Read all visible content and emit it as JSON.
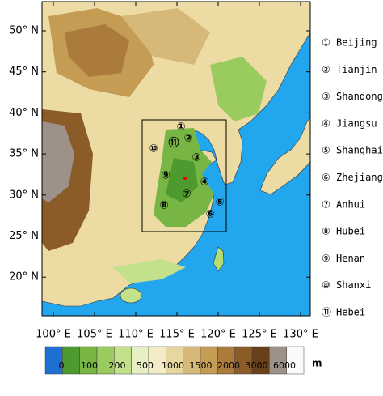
{
  "map": {
    "lat_ticks": [
      {
        "value": 50,
        "label": "50° N"
      },
      {
        "value": 45,
        "label": "45° N"
      },
      {
        "value": 40,
        "label": "40° N"
      },
      {
        "value": 35,
        "label": "35° N"
      },
      {
        "value": 30,
        "label": "30° N"
      },
      {
        "value": 25,
        "label": "25° N"
      },
      {
        "value": 20,
        "label": "20° N"
      }
    ],
    "lon_ticks": [
      {
        "value": 100,
        "label": "100° E"
      },
      {
        "value": 105,
        "label": "105° E"
      },
      {
        "value": 110,
        "label": "110° E"
      },
      {
        "value": 115,
        "label": "115° E"
      },
      {
        "value": 120,
        "label": "120° E"
      },
      {
        "value": 125,
        "label": "125° E"
      },
      {
        "value": 130,
        "label": "130° E"
      }
    ]
  },
  "legend": [
    {
      "symbol": "①",
      "name": "Beijing"
    },
    {
      "symbol": "②",
      "name": "Tianjin"
    },
    {
      "symbol": "③",
      "name": "Shandong"
    },
    {
      "symbol": "④",
      "name": "Jiangsu"
    },
    {
      "symbol": "⑤",
      "name": "Shanghai"
    },
    {
      "symbol": "⑥",
      "name": "Zhejiang"
    },
    {
      "symbol": "⑦",
      "name": "Anhui"
    },
    {
      "symbol": "⑧",
      "name": "Hubei"
    },
    {
      "symbol": "⑨",
      "name": "Henan"
    },
    {
      "symbol": "⑩",
      "name": "Shanxi"
    },
    {
      "symbol": "⑪",
      "name": "Hebei"
    }
  ],
  "colorbar": {
    "colors": [
      "#1f6fd2",
      "#4f9a2e",
      "#77b544",
      "#9acb5e",
      "#c3e08b",
      "#e6f0c4",
      "#f3ecc6",
      "#e6d6a0",
      "#d6b978",
      "#c49c54",
      "#aa7b3b",
      "#8b5b28",
      "#6a3f1c",
      "#9e918a",
      "#fafafa"
    ],
    "ticks": [
      0,
      100,
      200,
      500,
      1000,
      1500,
      2000,
      3000,
      6000
    ],
    "unit": "m"
  }
}
